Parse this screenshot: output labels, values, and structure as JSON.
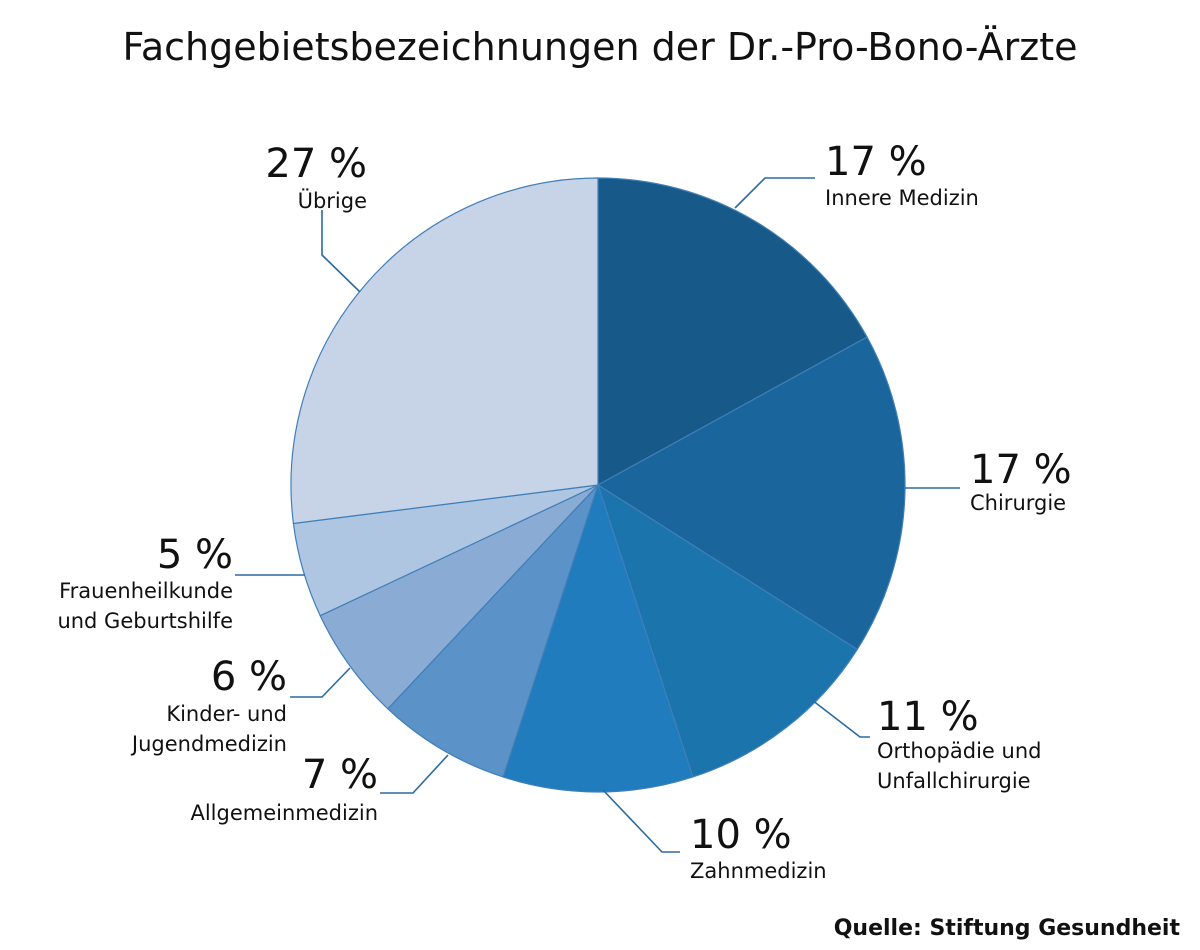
{
  "chart_data": {
    "type": "pie",
    "title": "Fachgebietsbezeichnungen der Dr.-Pro-Bono-Ärzte",
    "source": "Quelle: Stiftung Gesundheit",
    "unit": "%",
    "slices": [
      {
        "pct_label": "17 %",
        "value": 17,
        "label_lines": [
          "Innere Medizin"
        ],
        "color": "#175a8a"
      },
      {
        "pct_label": "17 %",
        "value": 17,
        "label_lines": [
          "Chirurgie"
        ],
        "color": "#19659c"
      },
      {
        "pct_label": "11 %",
        "value": 11,
        "label_lines": [
          "Orthopädie und",
          "Unfallchirurgie"
        ],
        "color": "#1b74ab"
      },
      {
        "pct_label": "10 %",
        "value": 10,
        "label_lines": [
          "Zahnmedizin"
        ],
        "color": "#207cbc"
      },
      {
        "pct_label": "7 %",
        "value": 7,
        "label_lines": [
          "Allgemeinmedizin"
        ],
        "color": "#5b92c7"
      },
      {
        "pct_label": "6 %",
        "value": 6,
        "label_lines": [
          "Kinder- und",
          "Jugendmedizin"
        ],
        "color": "#8aacd4"
      },
      {
        "pct_label": "5 %",
        "value": 5,
        "label_lines": [
          "Frauenheilkunde",
          "und Geburtshilfe"
        ],
        "color": "#aec6e1"
      },
      {
        "pct_label": "27 %",
        "value": 27,
        "label_lines": [
          "Übrige"
        ],
        "color": "#c7d4e7"
      }
    ]
  }
}
